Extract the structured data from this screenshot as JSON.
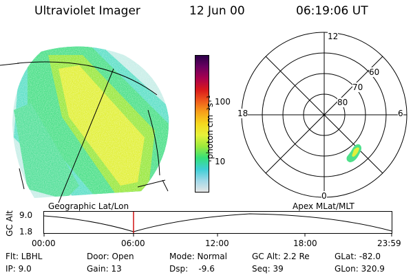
{
  "header": {
    "instrument": "Ultraviolet Imager",
    "date": "12 Jun 00",
    "time": "06:19:06 UT"
  },
  "colorbar": {
    "unit_label": "photon cm⁻²s⁻¹",
    "tick_100": "100",
    "tick_10": "10",
    "stops": [
      "#e6e6e6",
      "#a0d8e8",
      "#3fcfd6",
      "#35e07a",
      "#9bea3c",
      "#e6f23a",
      "#f5d81e",
      "#f7a21a",
      "#ef5a1c",
      "#d8181c",
      "#a8004e",
      "#6a0060",
      "#2a0048"
    ]
  },
  "polar": {
    "labels": {
      "top": "12",
      "left": "18",
      "right": "6",
      "bottom": "0"
    },
    "lat_labels": [
      "60",
      "70",
      "80"
    ]
  },
  "timeline": {
    "ylabel": "GC Alt",
    "ytick_top": "9.0",
    "ytick_bottom": "1.8",
    "left_caption": "Geographic Lat/Lon",
    "right_caption": "Apex MLat/MLT",
    "xticks": [
      "00:00",
      "06:00",
      "12:00",
      "18:00",
      "23:59"
    ],
    "marker_color": "#d01010"
  },
  "info": {
    "flt": "Flt: LBHL",
    "ip": "IP:  9.0",
    "door": "Door: Open",
    "gain": "Gain: 13",
    "mode": "Mode: Normal",
    "dsp": "Dsp:    -9.6",
    "gcalt": "GC Alt: 2.2 Re",
    "seq": "Seq: 39",
    "glat": "GLat: -82.0",
    "glon": "GLon: 320.9"
  }
}
